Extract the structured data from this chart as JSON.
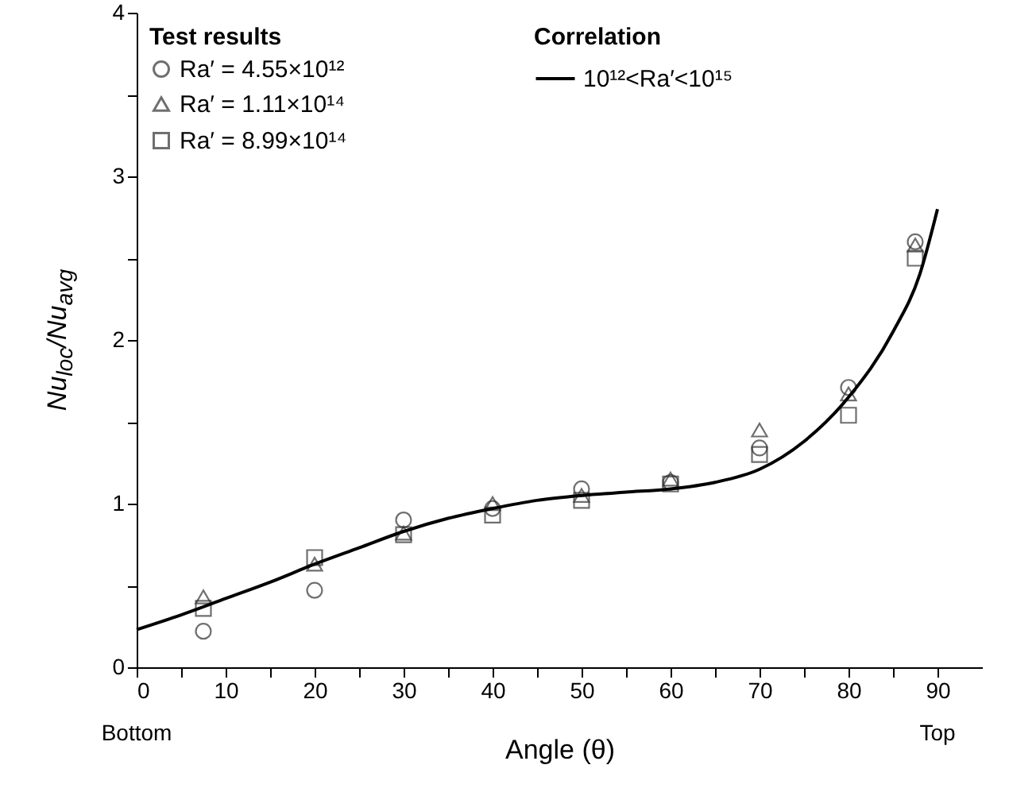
{
  "chart_data": {
    "type": "scatter",
    "xlabel": "Angle (θ)",
    "ylabel": "Nu$_{loc}$/Nu$_{avg}$",
    "legend_title": "Test results",
    "legend": "top left",
    "xlim": [
      0,
      95
    ],
    "ylim": [
      0,
      4
    ],
    "xticks": [
      0,
      {
        "value": 5,
        "label": null
      },
      10,
      {
        "value": 15,
        "label": null
      },
      20,
      {
        "value": 25,
        "label": null
      },
      30,
      {
        "value": 35,
        "label": null
      },
      40,
      {
        "value": 45,
        "label": null
      },
      50,
      {
        "value": 55,
        "label": null
      },
      60,
      {
        "value": 65,
        "label": null
      },
      70,
      {
        "value": 75,
        "label": null
      },
      80,
      {
        "value": 85,
        "label": null
      },
      90
    ],
    "yticks": [
      0,
      {
        "value": 0.5,
        "label": null
      },
      1,
      {
        "value": 1.5,
        "label": null
      },
      2,
      {
        "value": 2.5,
        "label": null
      },
      3,
      {
        "value": 3.5,
        "label": null
      },
      4
    ],
    "grid": false,
    "x": [
      7.5,
      20,
      30,
      40,
      50,
      60,
      70,
      80,
      87.5
    ],
    "series": [
      {
        "name": "Ra′ = 4.55×10¹²",
        "color": "#333333",
        "marker": "circle",
        "values": [
          0.22,
          0.47,
          0.9,
          0.97,
          1.09,
          1.13,
          1.34,
          1.71,
          2.6
        ]
      },
      {
        "name": "Ra′ = 1.11×10¹⁴",
        "color": "#333333",
        "marker": "triangle",
        "values": [
          0.43,
          0.63,
          0.82,
          1.0,
          1.05,
          1.15,
          1.45,
          1.67,
          2.58
        ]
      },
      {
        "name": "Ra′ = 8.99×10¹⁴",
        "color": "#333333",
        "marker": "square",
        "values": [
          0.36,
          0.67,
          0.81,
          0.93,
          1.02,
          1.12,
          1.3,
          1.54,
          2.5
        ]
      },
      {
        "name": "10¹²<Ra′<10¹⁵",
        "type": "line",
        "color": "#000000",
        "marker": "none",
        "x": [
          0,
          5,
          10,
          15,
          20,
          25,
          30,
          35,
          40,
          45,
          50,
          55,
          60,
          65,
          70,
          75,
          80,
          85,
          88,
          90
        ],
        "values": [
          0.23,
          0.32,
          0.42,
          0.52,
          0.63,
          0.73,
          0.83,
          0.91,
          0.97,
          1.02,
          1.05,
          1.07,
          1.09,
          1.13,
          1.21,
          1.38,
          1.65,
          2.05,
          2.4,
          2.8
        ]
      }
    ],
    "annotations": [
      "Correlation",
      "Bottom",
      "Top"
    ]
  }
}
